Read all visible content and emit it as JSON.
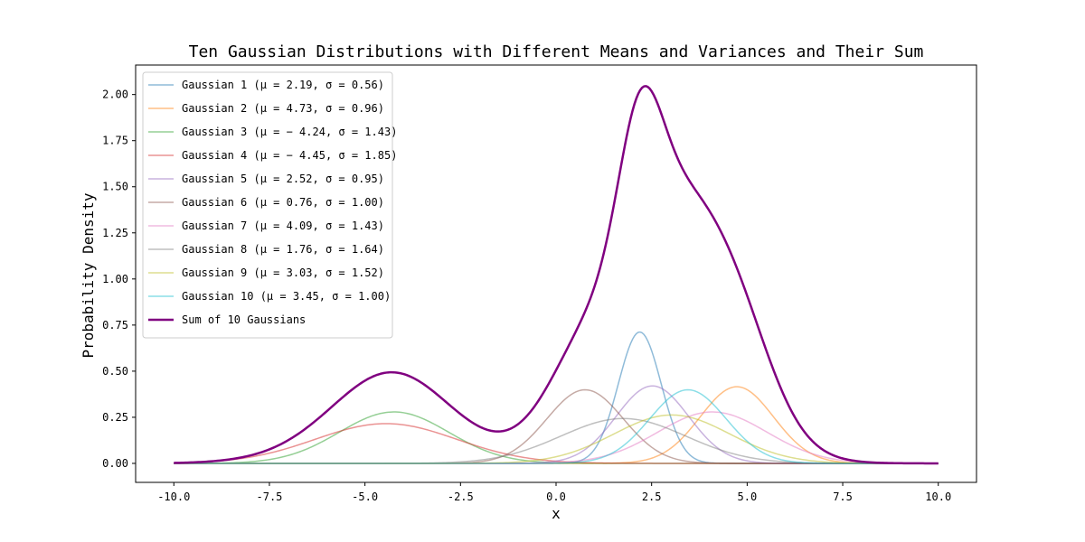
{
  "chart_data": {
    "type": "line",
    "title": "Ten Gaussian Distributions with Different Means and Variances and Their Sum",
    "xlabel": "x",
    "ylabel": "Probability Density",
    "xlim": [
      -11.0,
      11.0
    ],
    "ylim": [
      -0.103,
      2.16
    ],
    "xticks": [
      -10.0,
      -7.5,
      -5.0,
      -2.5,
      0.0,
      2.5,
      5.0,
      7.5,
      10.0
    ],
    "xtick_labels": [
      "-10.0",
      "-7.5",
      "-5.0",
      "-2.5",
      "0.0",
      "2.5",
      "5.0",
      "7.5",
      "10.0"
    ],
    "yticks": [
      0.0,
      0.25,
      0.5,
      0.75,
      1.0,
      1.25,
      1.5,
      1.75,
      2.0
    ],
    "ytick_labels": [
      "0.00",
      "0.25",
      "0.50",
      "0.75",
      "1.00",
      "1.25",
      "1.50",
      "1.75",
      "2.00"
    ],
    "x_range": [
      -10.0,
      10.0
    ],
    "grid": false,
    "legend_position": "upper-left",
    "series": [
      {
        "name": "Gaussian 1 (μ = 2.19, σ = 0.56)",
        "mu": 2.19,
        "sigma": 0.56,
        "color": "#1f77b4",
        "alpha": 0.5,
        "width": 1.5
      },
      {
        "name": "Gaussian 2 (μ = 4.73, σ = 0.96)",
        "mu": 4.73,
        "sigma": 0.96,
        "color": "#ff7f0e",
        "alpha": 0.5,
        "width": 1.5
      },
      {
        "name": "Gaussian 3 (μ = − 4.24, σ = 1.43)",
        "mu": -4.24,
        "sigma": 1.43,
        "color": "#2ca02c",
        "alpha": 0.5,
        "width": 1.5
      },
      {
        "name": "Gaussian 4 (μ = − 4.45, σ = 1.85)",
        "mu": -4.45,
        "sigma": 1.85,
        "color": "#d62728",
        "alpha": 0.5,
        "width": 1.5
      },
      {
        "name": "Gaussian 5 (μ = 2.52, σ = 0.95)",
        "mu": 2.52,
        "sigma": 0.95,
        "color": "#9467bd",
        "alpha": 0.5,
        "width": 1.5
      },
      {
        "name": "Gaussian 6 (μ = 0.76, σ = 1.00)",
        "mu": 0.76,
        "sigma": 1.0,
        "color": "#8c564b",
        "alpha": 0.5,
        "width": 1.5
      },
      {
        "name": "Gaussian 7 (μ = 4.09, σ = 1.43)",
        "mu": 4.09,
        "sigma": 1.43,
        "color": "#e377c2",
        "alpha": 0.5,
        "width": 1.5
      },
      {
        "name": "Gaussian 8 (μ = 1.76, σ = 1.64)",
        "mu": 1.76,
        "sigma": 1.64,
        "color": "#7f7f7f",
        "alpha": 0.5,
        "width": 1.5
      },
      {
        "name": "Gaussian 9 (μ = 3.03, σ = 1.52)",
        "mu": 3.03,
        "sigma": 1.52,
        "color": "#bcbd22",
        "alpha": 0.5,
        "width": 1.5
      },
      {
        "name": "Gaussian 10 (μ = 3.45, σ = 1.00)",
        "mu": 3.45,
        "sigma": 1.0,
        "color": "#17becf",
        "alpha": 0.5,
        "width": 1.5
      },
      {
        "name": "Sum of 10 Gaussians",
        "type": "sum",
        "color": "#800080",
        "alpha": 1.0,
        "width": 2.5
      }
    ]
  }
}
